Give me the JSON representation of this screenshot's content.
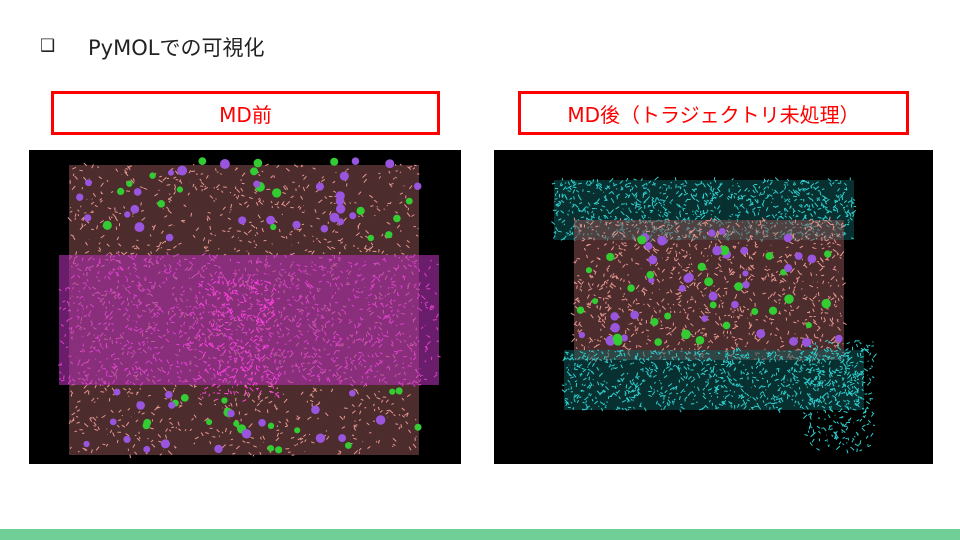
{
  "slide": {
    "bullet_icon": "checkbox-square-icon",
    "title": "PyMOLでの可視化",
    "before_label": "MD前",
    "after_label": "MD後（トラジェクトリ未処理）"
  },
  "colors": {
    "label_border": "#ff0000",
    "footer_bar": "#6fcf97"
  }
}
